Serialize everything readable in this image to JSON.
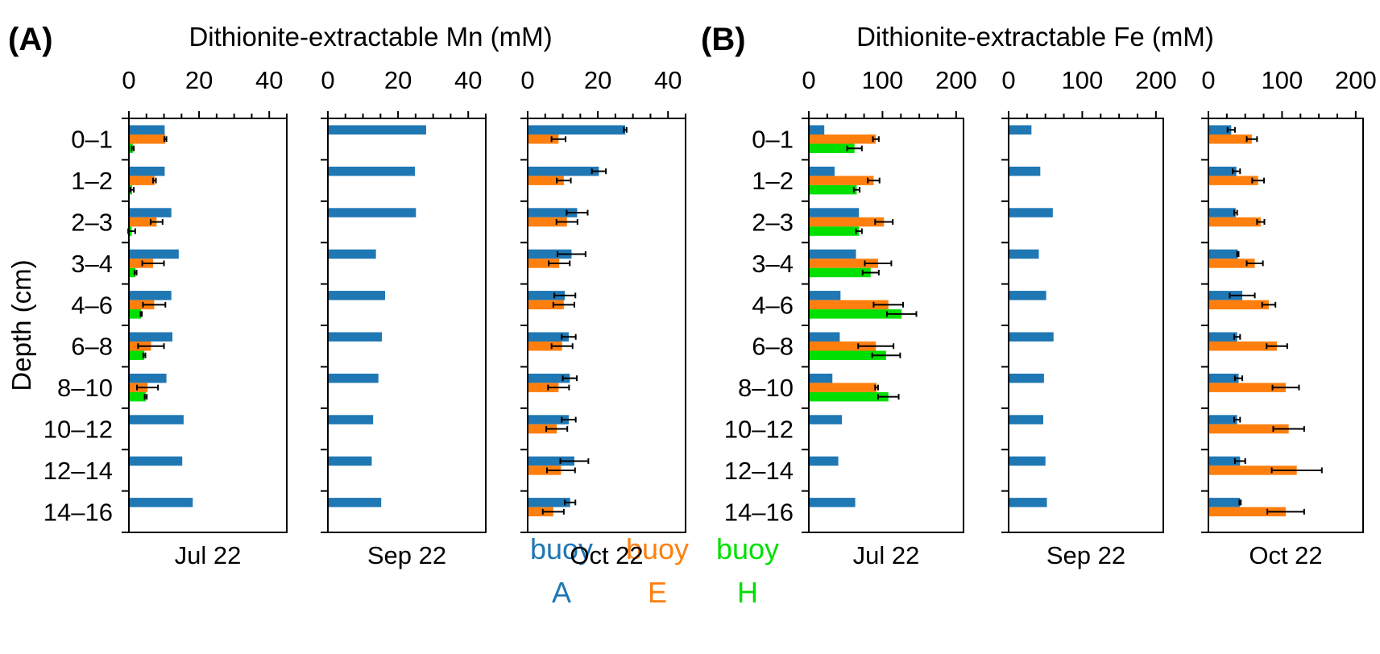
{
  "depth_label": "Depth (cm)",
  "depth_categories": [
    "0–1",
    "1–2",
    "2–3",
    "3–4",
    "4–6",
    "6–8",
    "8–10",
    "10–12",
    "12–14",
    "14–16"
  ],
  "legend": [
    {
      "line1": "buoy",
      "line2": "A",
      "color": "#1f77b4"
    },
    {
      "line1": "buoy",
      "line2": "E",
      "color": "#ff7f0e"
    },
    {
      "line1": "buoy",
      "line2": "H",
      "color": "#00e000"
    }
  ],
  "chart_data": [
    {
      "type": "bar",
      "orientation": "horizontal",
      "panel_label": "(A)",
      "title": "Dithionite-extractable Mn (mM)",
      "xlim": [
        0,
        45
      ],
      "xticks": [
        0,
        20,
        40
      ],
      "minor_tick_step": 5,
      "ylabel": "Depth (cm)",
      "subplots": [
        {
          "xlabel": "Jul 22",
          "series": [
            {
              "name": "buoy A",
              "values": [
                10.2,
                10.2,
                12.1,
                14.2,
                12.1,
                12.4,
                10.7,
                15.6,
                15.2,
                18.2
              ],
              "errors": [
                null,
                null,
                null,
                null,
                null,
                null,
                null,
                null,
                null,
                null
              ]
            },
            {
              "name": "buoy E",
              "values": [
                10.4,
                7.3,
                7.9,
                6.9,
                7.2,
                6.3,
                5.3,
                null,
                null,
                null
              ],
              "errors": [
                0.3,
                0.4,
                1.7,
                3.1,
                3.2,
                3.7,
                3.0,
                null,
                null,
                null
              ]
            },
            {
              "name": "buoy H",
              "values": [
                1.1,
                0.9,
                0.8,
                1.9,
                3.5,
                4.4,
                4.8,
                null,
                null,
                null
              ],
              "errors": [
                0.3,
                0.5,
                1.0,
                0.3,
                0.2,
                0.3,
                0.3,
                null,
                null,
                null
              ]
            }
          ]
        },
        {
          "xlabel": "Sep 22",
          "series": [
            {
              "name": "buoy A",
              "values": [
                28.0,
                24.8,
                25.1,
                13.7,
                16.3,
                15.4,
                14.4,
                12.9,
                12.5,
                15.2
              ],
              "errors": [
                null,
                null,
                null,
                null,
                null,
                null,
                null,
                null,
                null,
                null
              ]
            }
          ]
        },
        {
          "xlabel": "Oct 22",
          "series": [
            {
              "name": "buoy A",
              "values": [
                27.8,
                20.3,
                14.1,
                12.5,
                10.6,
                11.7,
                12.0,
                11.7,
                13.3,
                12.1
              ],
              "errors": [
                0.4,
                2.0,
                3.0,
                4.0,
                3.0,
                2.0,
                2.0,
                2.0,
                4.0,
                1.5
              ]
            },
            {
              "name": "buoy E",
              "values": [
                8.8,
                10.3,
                11.2,
                9.0,
                10.3,
                9.8,
                8.8,
                8.3,
                9.5,
                7.3
              ],
              "errors": [
                2.0,
                2.0,
                3.0,
                3.0,
                3.0,
                3.0,
                3.0,
                3.0,
                4.0,
                3.0
              ]
            }
          ]
        }
      ]
    },
    {
      "type": "bar",
      "orientation": "horizontal",
      "panel_label": "(B)",
      "title": "Dithionite-extractable Fe (mM)",
      "xlim": [
        0,
        210
      ],
      "xticks": [
        0,
        100,
        200
      ],
      "minor_tick_step": 25,
      "ylabel": "Depth (cm)",
      "subplots": [
        {
          "xlabel": "Jul 22",
          "series": [
            {
              "name": "buoy A",
              "values": [
                21,
                35,
                68,
                64,
                43,
                42,
                32,
                45,
                40,
                63
              ],
              "errors": [
                null,
                null,
                null,
                null,
                null,
                null,
                null,
                null,
                null,
                null
              ]
            },
            {
              "name": "buoy E",
              "values": [
                91,
                88,
                102,
                94,
                108,
                91,
                92,
                null,
                null,
                null
              ],
              "errors": [
                4,
                8,
                12,
                18,
                20,
                24,
                2,
                null,
                null,
                null
              ]
            },
            {
              "name": "buoy H",
              "values": [
                62,
                65,
                68,
                84,
                126,
                105,
                108,
                null,
                null,
                null
              ],
              "errors": [
                10,
                4,
                4,
                11,
                20,
                19,
                14,
                null,
                null,
                null
              ]
            }
          ]
        },
        {
          "xlabel": "Sep 22",
          "series": [
            {
              "name": "buoy A",
              "values": [
                31,
                43,
                60,
                41,
                51,
                61,
                48,
                47,
                50,
                52
              ],
              "errors": [
                null,
                null,
                null,
                null,
                null,
                null,
                null,
                null,
                null,
                null
              ]
            }
          ]
        },
        {
          "xlabel": "Oct 22",
          "series": [
            {
              "name": "buoy A",
              "values": [
                31,
                38,
                37,
                40,
                46,
                39,
                41,
                39,
                43,
                43
              ],
              "errors": [
                5,
                5,
                2,
                1,
                17,
                4,
                5,
                4,
                7,
                1
              ]
            },
            {
              "name": "buoy E",
              "values": [
                59,
                67.5,
                71,
                63,
                82,
                93,
                105,
                109,
                120,
                105
              ],
              "errors": [
                7,
                8,
                5,
                11,
                9,
                14,
                18,
                21,
                34,
                25
              ]
            }
          ]
        }
      ]
    }
  ]
}
